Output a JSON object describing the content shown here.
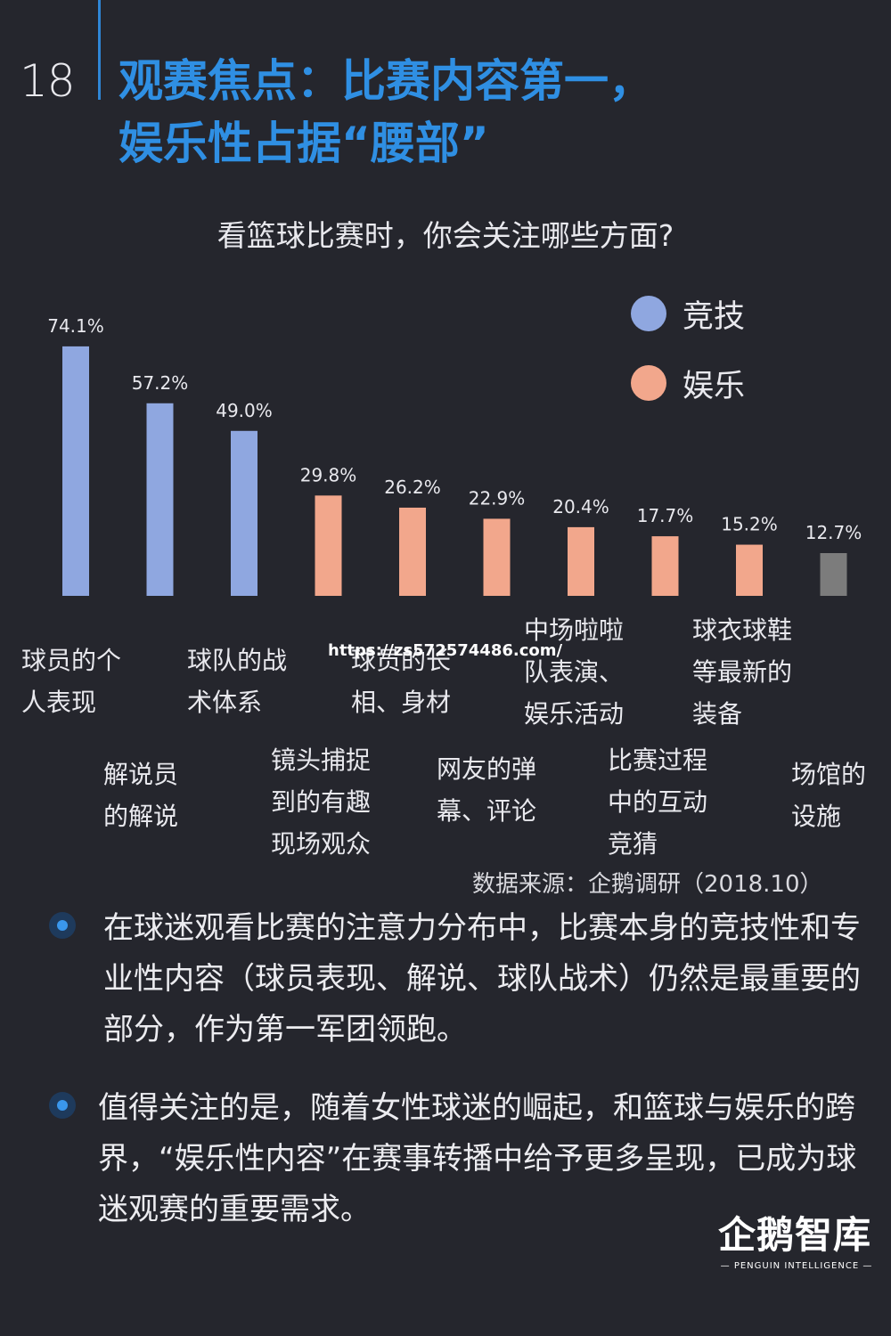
{
  "page_number": "18",
  "title_line1": "观赛焦点：比赛内容第一，",
  "title_line2": "娱乐性占据“腰部”",
  "chart_data": {
    "type": "bar",
    "title": "看篮球比赛时，你会关注哪些方面?",
    "categories": [
      "球员的个人表现",
      "解说员的解说",
      "球队的战术体系",
      "镜头捕捉到的有趣现场观众",
      "球员的长相、身材",
      "网友的弹幕、评论",
      "中场啦啦队表演、娱乐活动",
      "比赛过程中的互动竞猜",
      "球衣球鞋等最新的装备",
      "场馆的设施"
    ],
    "category_lines": [
      [
        "球员的个",
        "人表现"
      ],
      [
        "解说员",
        "的解说"
      ],
      [
        "球队的战",
        "术体系"
      ],
      [
        "镜头捕捉",
        "到的有趣",
        "现场观众"
      ],
      [
        "球员的长",
        "相、身材"
      ],
      [
        "网友的弹",
        "幕、评论"
      ],
      [
        "中场啦啦",
        "队表演、",
        "娱乐活动"
      ],
      [
        "比赛过程",
        "中的互动",
        "竞猜"
      ],
      [
        "球衣球鞋",
        "等最新的",
        "装备"
      ],
      [
        "场馆的",
        "设施"
      ]
    ],
    "values": [
      74.1,
      57.2,
      49.0,
      29.8,
      26.2,
      22.9,
      20.4,
      17.7,
      15.2,
      12.7
    ],
    "value_labels": [
      "74.1%",
      "57.2%",
      "49.0%",
      "29.8%",
      "26.2%",
      "22.9%",
      "20.4%",
      "17.7%",
      "15.2%",
      "12.7%"
    ],
    "group": [
      "竞技",
      "竞技",
      "竞技",
      "娱乐",
      "娱乐",
      "娱乐",
      "娱乐",
      "娱乐",
      "娱乐",
      "other"
    ],
    "legend": [
      {
        "name": "竞技",
        "color": "#8fa7e0"
      },
      {
        "name": "娱乐",
        "color": "#f2a78c"
      }
    ],
    "other_color": "#7c7c7c",
    "legend_position": "top-right",
    "ylim": [
      0,
      80
    ],
    "grid": false
  },
  "watermark": "https://zs572574486.com/",
  "source": "数据来源：企鹅调研（2018.10）",
  "paragraphs": [
    "在球迷观看比赛的注意力分布中，比赛本身的竞技性和专业性内容（球员表现、解说、球队战术）仍然是最重要的部分，作为第一军团领跑。",
    "值得关注的是，随着女性球迷的崛起，和篮球与娱乐的跨界，“娱乐性内容”在赛事转播中给予更多呈现，已成为球迷观赛的重要需求。"
  ],
  "logo": {
    "main": "企鹅智库",
    "sub": "— PENGUIN INTELLIGENCE —"
  }
}
